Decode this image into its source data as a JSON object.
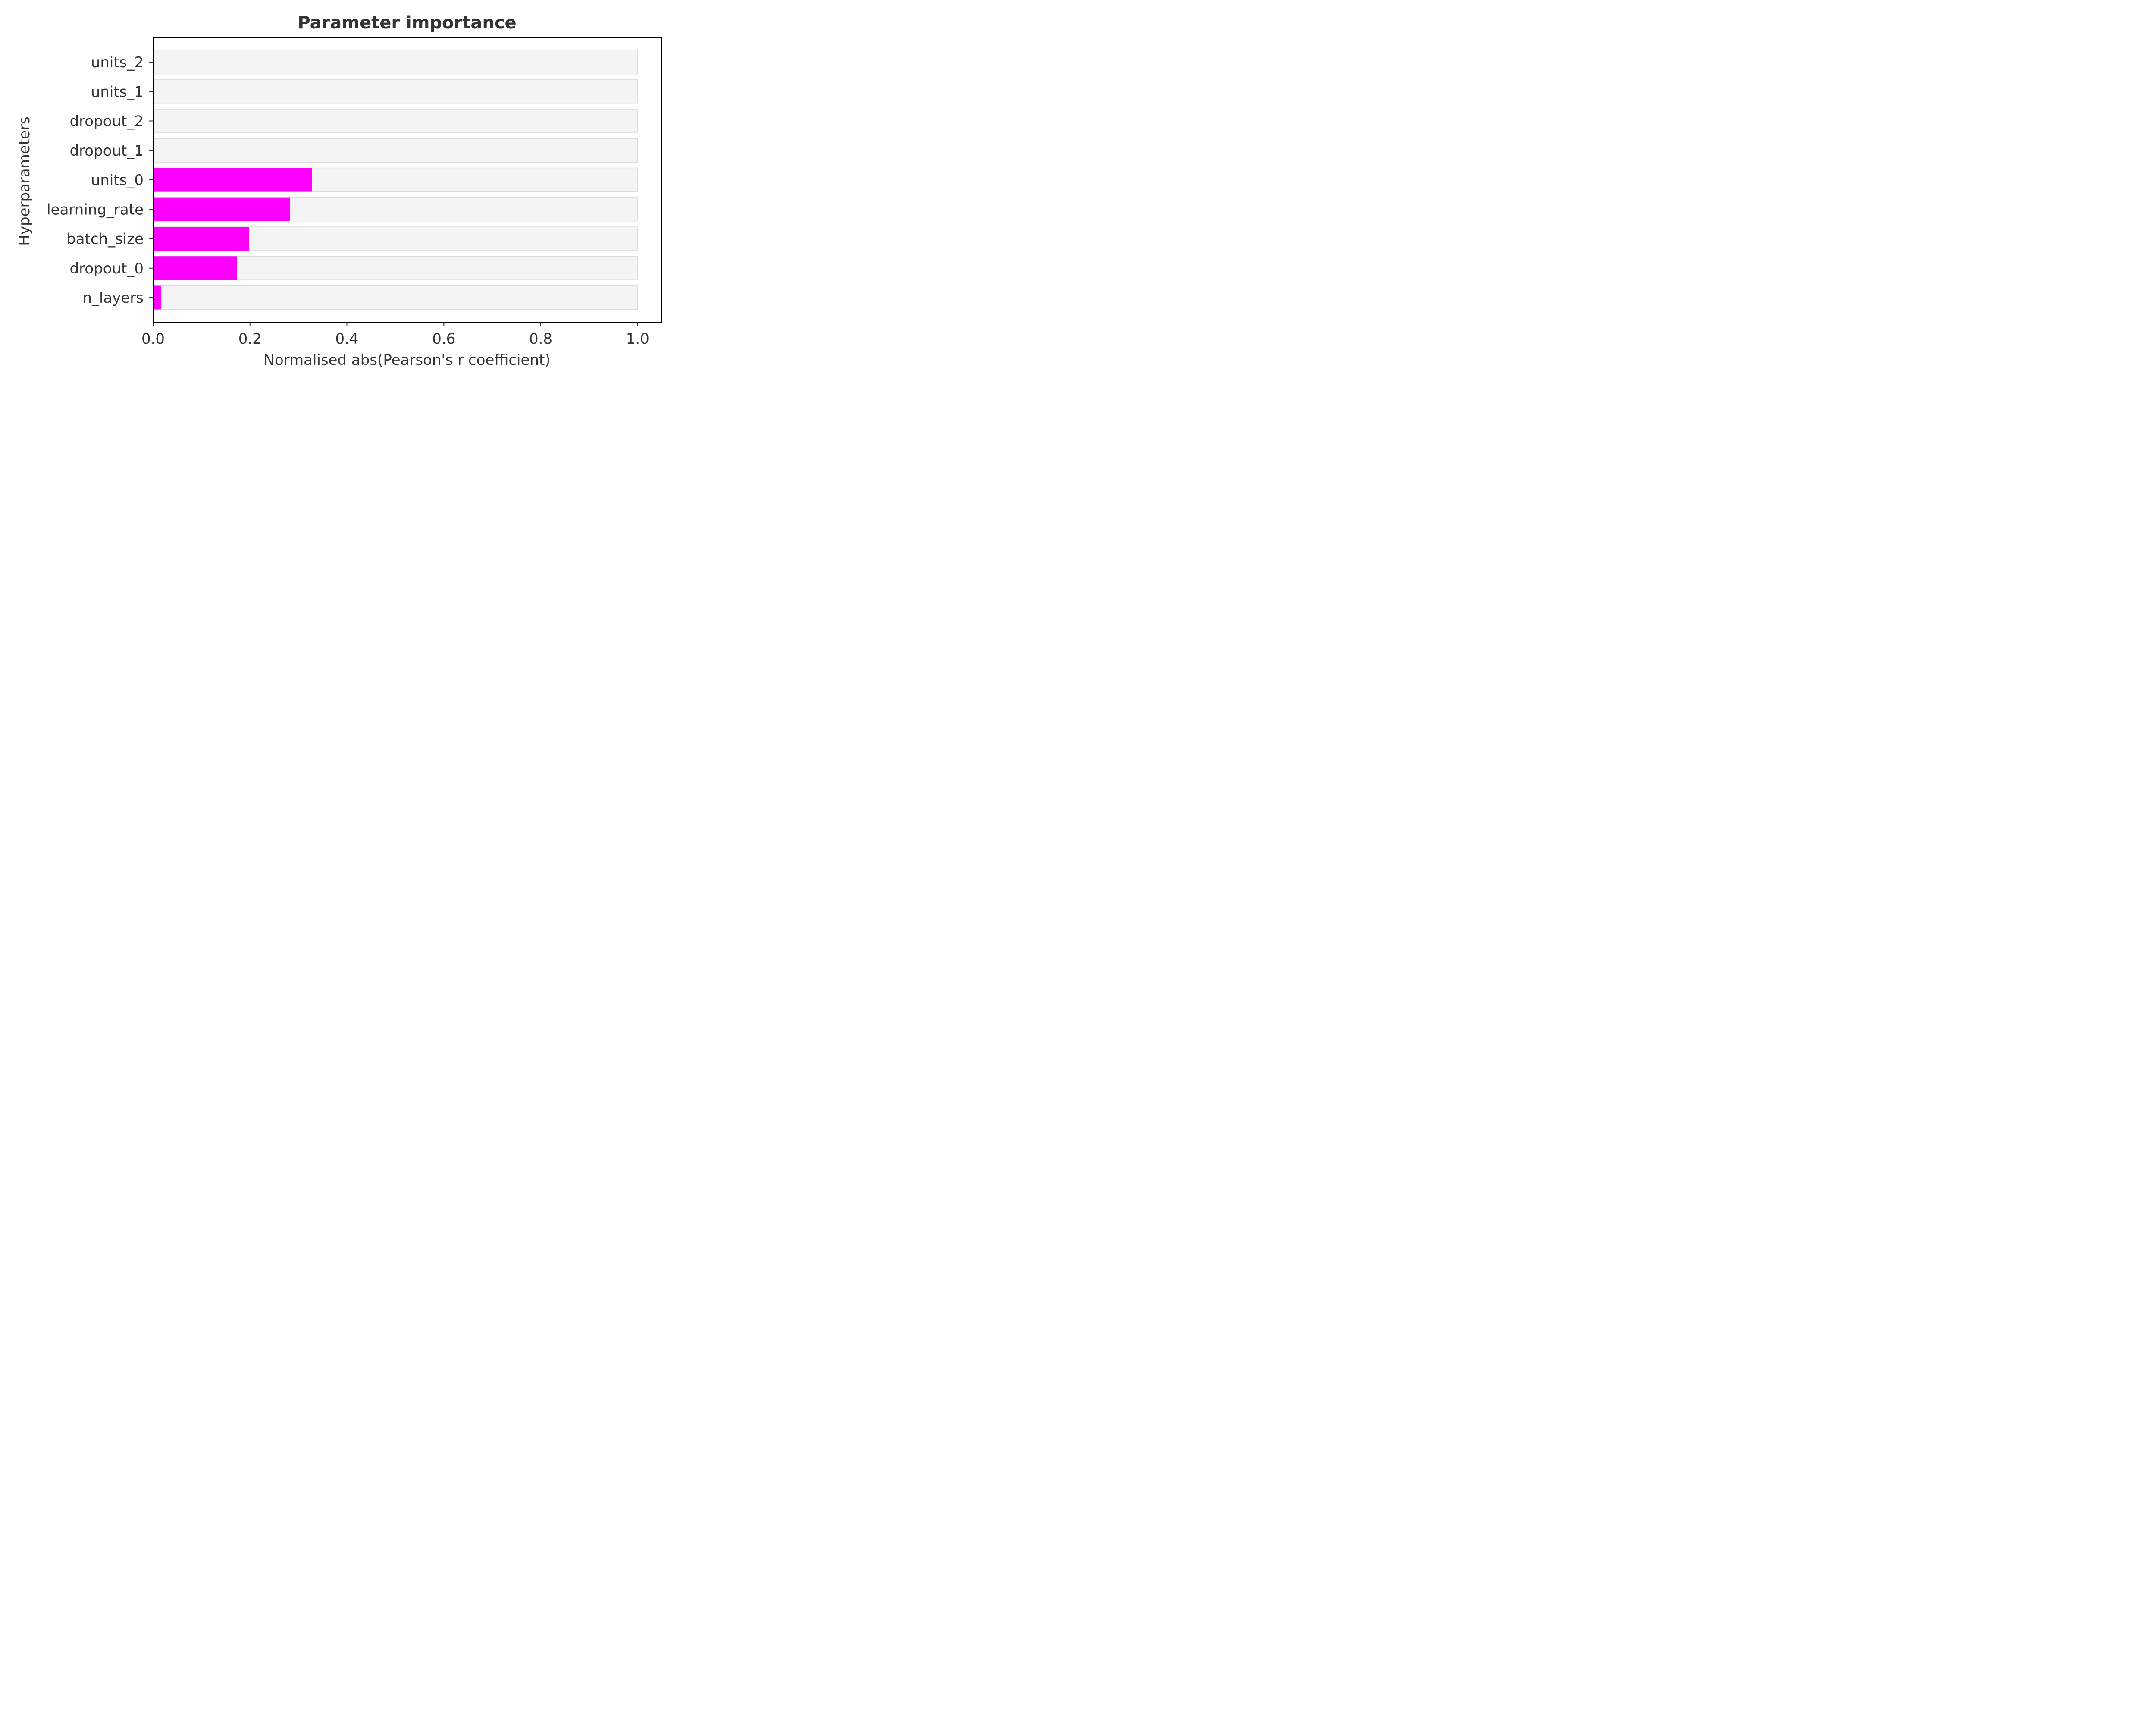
{
  "chart_data": {
    "type": "bar",
    "orientation": "horizontal",
    "title": "Parameter importance",
    "xlabel": "Normalised abs(Pearson's r coefficient)",
    "ylabel": "Hyperparameters",
    "xlim": [
      0,
      1.05
    ],
    "xticks": [
      0.0,
      0.2,
      0.4,
      0.6,
      0.8,
      1.0
    ],
    "xtick_labels": [
      "0.0",
      "0.2",
      "0.4",
      "0.6",
      "0.8",
      "1.0"
    ],
    "categories": [
      "units_2",
      "units_1",
      "dropout_2",
      "dropout_1",
      "units_0",
      "learning_rate",
      "batch_size",
      "dropout_0",
      "n_layers"
    ],
    "values": [
      0.0,
      0.0,
      0.0,
      0.0,
      0.328,
      0.283,
      0.198,
      0.173,
      0.017
    ],
    "background_values": [
      1.0,
      1.0,
      1.0,
      1.0,
      1.0,
      1.0,
      1.0,
      1.0,
      1.0
    ],
    "bar_color": "#ff00ff",
    "background_bar_color": "#f4f4f4",
    "background_bar_edge": "#dddddd",
    "grid": false,
    "legend": "none"
  }
}
